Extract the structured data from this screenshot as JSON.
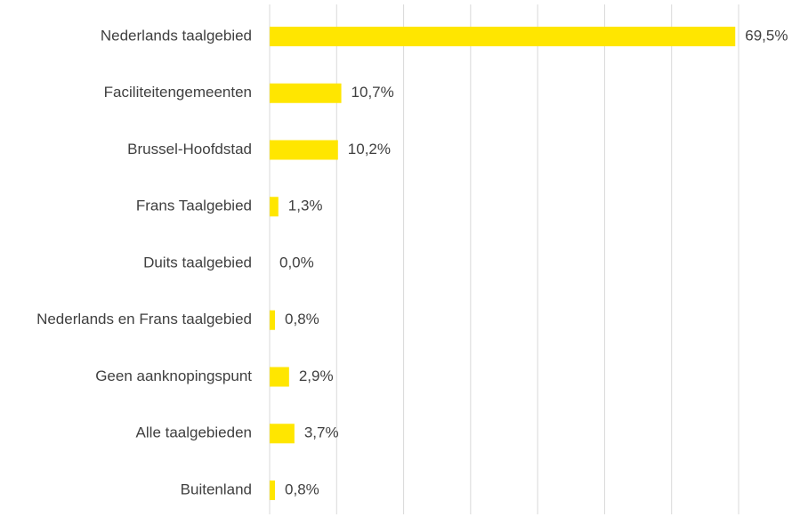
{
  "chart_data": {
    "type": "barh",
    "categories": [
      "Nederlands taalgebied",
      "Faciliteitengemeenten",
      "Brussel-Hoofdstad",
      "Frans Taalgebied",
      "Duits taalgebied",
      "Nederlands en Frans taalgebied",
      "Geen aanknopingspunt",
      "Alle taalgebieden",
      "Buitenland"
    ],
    "values": [
      69.5,
      10.7,
      10.2,
      1.3,
      0.0,
      0.8,
      2.9,
      3.7,
      0.8
    ],
    "value_labels": [
      "69,5%",
      "10,7%",
      "10,2%",
      "1,3%",
      "0,0%",
      "0,8%",
      "2,9%",
      "3,7%",
      "0,8%"
    ],
    "color": "#ffe600",
    "xlim": [
      0,
      70
    ],
    "xticks": [
      0,
      10,
      20,
      30,
      40,
      50,
      60,
      70
    ],
    "grid": true
  }
}
